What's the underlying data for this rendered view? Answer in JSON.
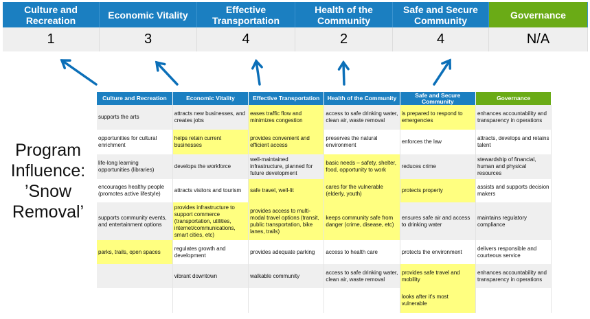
{
  "scores": [
    {
      "label": "Culture and Recreation",
      "score": "1"
    },
    {
      "label": "Economic Vitality",
      "score": "3"
    },
    {
      "label": "Effective Transportation",
      "score": "4"
    },
    {
      "label": "Health of the Community",
      "score": "2"
    },
    {
      "label": "Safe and Secure Community",
      "score": "4"
    },
    {
      "label": "Governance",
      "score": "N/A"
    }
  ],
  "caption": "Program Influence: ’Snow Removal’",
  "colors": {
    "header_blue": "#1b7fc1",
    "governance_green": "#6aab16",
    "highlight": "#ffff80",
    "arrow": "#0b6fb8"
  },
  "table": {
    "headers": [
      "Culture and Recreation",
      "Economic Vitality",
      "Effective Transportation",
      "Health of the Community",
      "Safe and Secure Community",
      "Governance"
    ],
    "rows": [
      [
        "supports the arts",
        "attracts new businesses, and creates jobs",
        "eases traffic flow and minimizes congestion",
        "access to safe drinking water, clean air, waste removal",
        "is prepared to respond to emergencies",
        "enhances accountability and transparency in operations"
      ],
      [
        "opportunities for cultural enrichment",
        "helps retain current businesses",
        "provides convenient and efficient access",
        "preserves the natural environment",
        "enforces the law",
        "attracts, develops and retains talent"
      ],
      [
        "life-long learning opportunities (libraries)",
        "develops the workforce",
        "well-maintained infrastructure, planned for future development",
        "basic needs – safety, shelter, food, opportunity to work",
        "reduces crime",
        "stewardship of financial, human and physical resources"
      ],
      [
        "encourages healthy people (promotes active lifestyle)",
        "attracts visitors and tourism",
        "safe travel, well-lit",
        "cares for the vulnerable (elderly, youth)",
        "protects property",
        "assists and supports decision makers"
      ],
      [
        "supports community events, and entertainment options",
        "provides infrastructure to support commerce (transportation, utilities, internet/communications, smart cities, etc)",
        "provides access to multi-modal travel options (transit, public transportation, bike lanes, trails)",
        "keeps community safe from danger (crime, disease, etc)",
        "ensures safe air and access to drinking water",
        "maintains regulatory compliance"
      ],
      [
        "parks, trails, open spaces",
        "regulates growth and development",
        "provides adequate parking",
        "access to health care",
        "protects the environment",
        "delivers responsible and courteous service"
      ],
      [
        "",
        "vibrant downtown",
        "walkable community",
        "access to safe drinking water, clean air, waste removal",
        "provides safe travel and mobility",
        "enhances accountability and transparency in operations"
      ],
      [
        "",
        "",
        "",
        "",
        "looks after it's most vulnerable",
        ""
      ]
    ],
    "highlighted": [
      [
        0,
        2
      ],
      [
        0,
        4
      ],
      [
        1,
        1
      ],
      [
        1,
        2
      ],
      [
        2,
        3
      ],
      [
        3,
        2
      ],
      [
        3,
        3
      ],
      [
        3,
        4
      ],
      [
        4,
        1
      ],
      [
        4,
        2
      ],
      [
        4,
        3
      ],
      [
        5,
        0
      ],
      [
        6,
        4
      ],
      [
        7,
        4
      ]
    ]
  }
}
